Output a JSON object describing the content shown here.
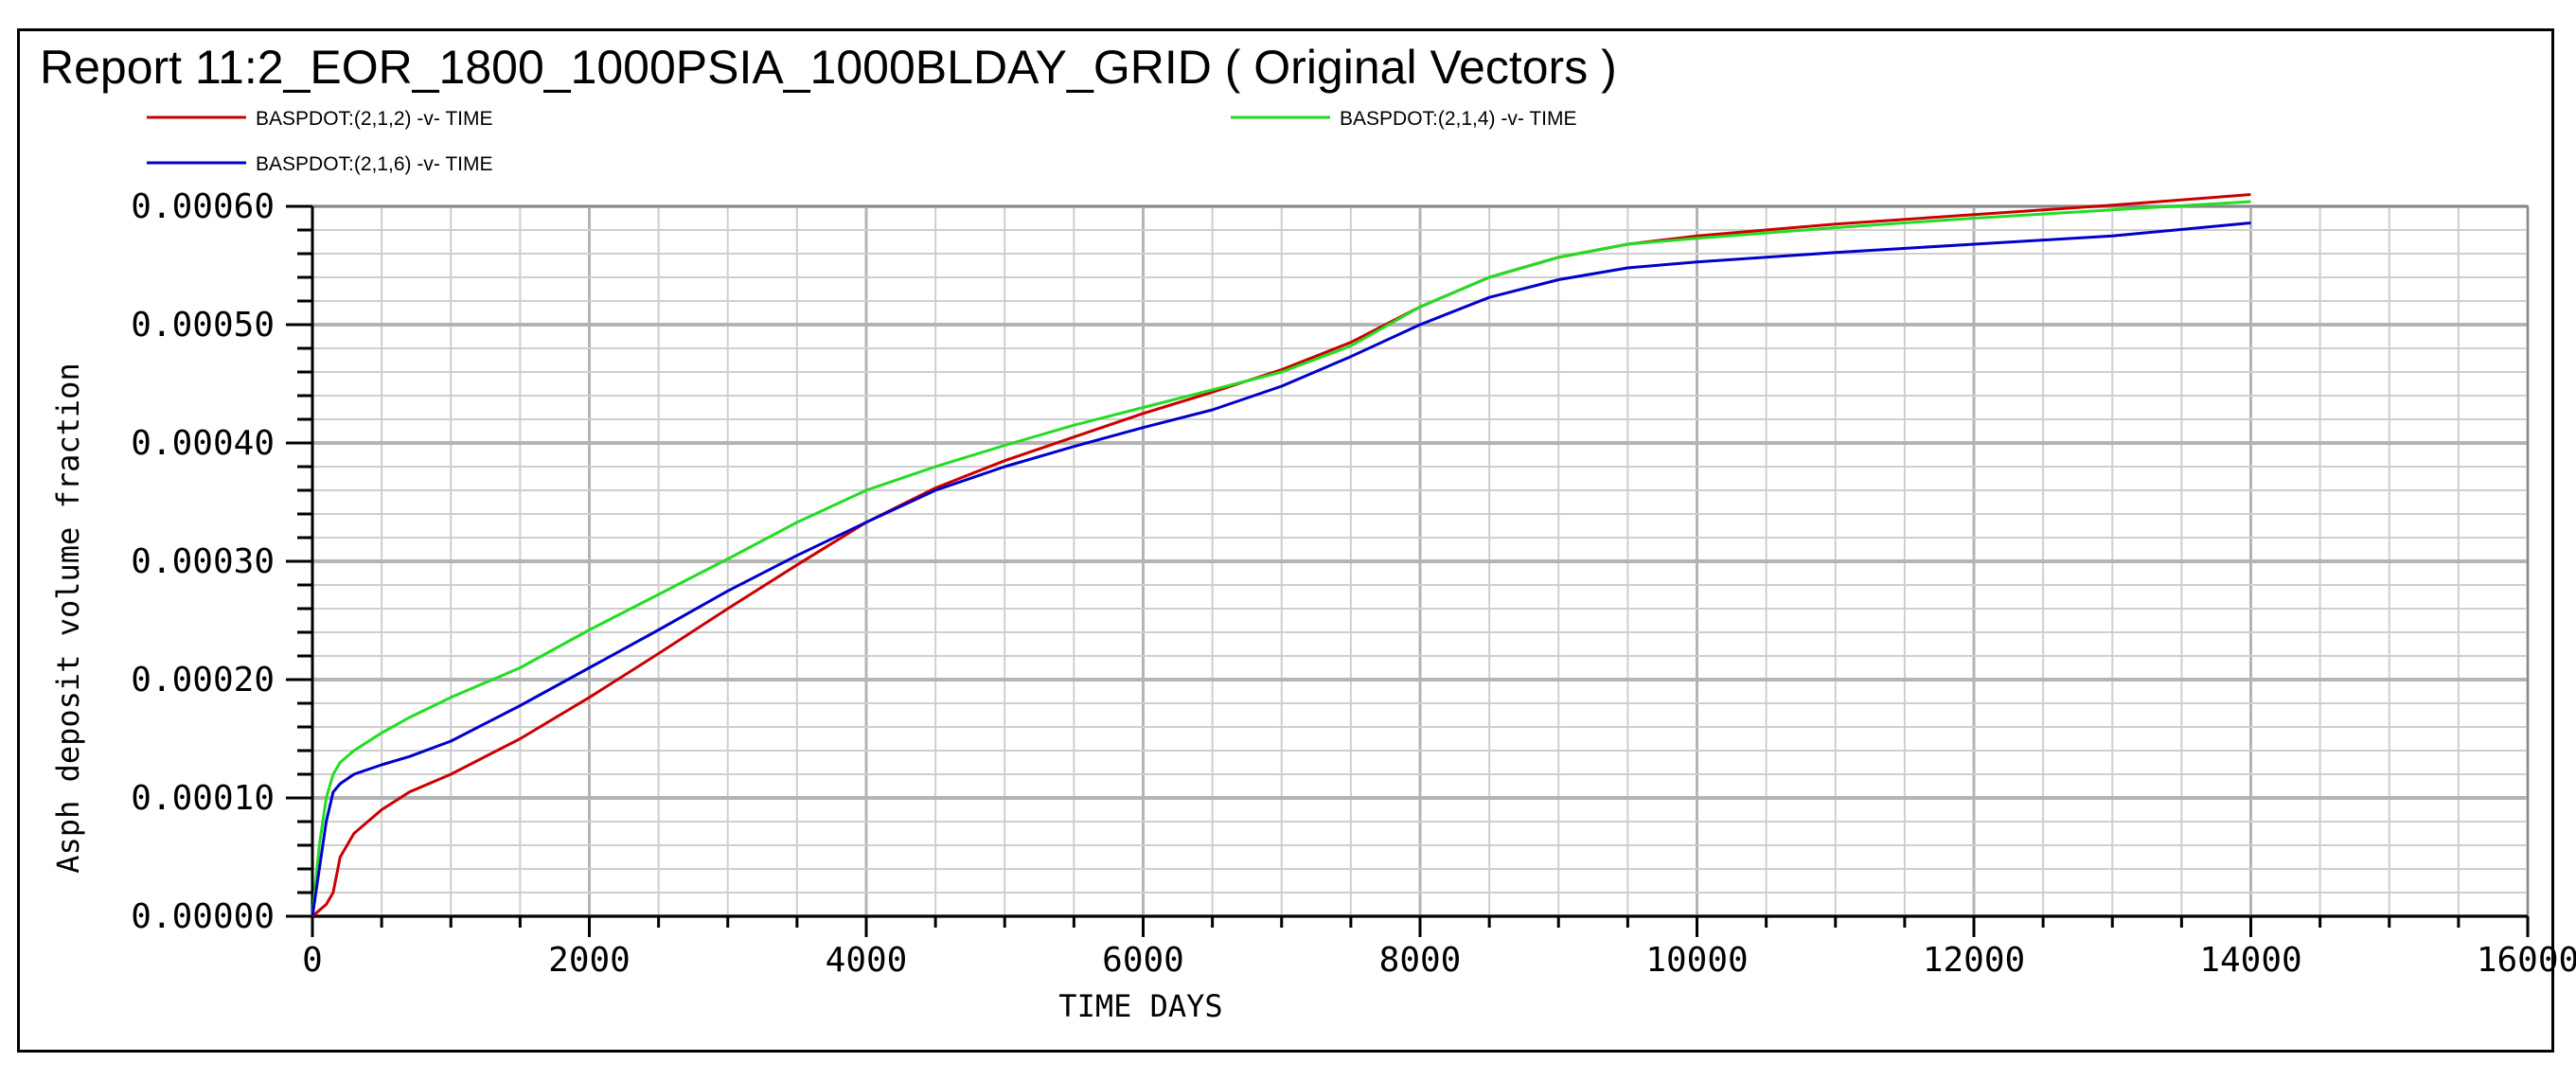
{
  "chart_data": {
    "type": "line",
    "title": "Report 11:2_EOR_1800_1000PSIA_1000BLDAY_GRID ( Original Vectors )",
    "xlabel": "TIME   DAYS",
    "ylabel": "Asph deposit volume fraction",
    "xlim": [
      0,
      16000
    ],
    "ylim": [
      0,
      0.0006
    ],
    "xticks": [
      0,
      2000,
      4000,
      6000,
      8000,
      10000,
      12000,
      14000,
      16000
    ],
    "xtick_labels": [
      "0",
      "2000",
      "4000",
      "6000",
      "8000",
      "10000",
      "12000",
      "14000",
      "16000"
    ],
    "yticks": [
      0,
      0.0001,
      0.0002,
      0.0003,
      0.0004,
      0.0005,
      0.0006
    ],
    "ytick_labels": [
      "0.00000",
      "0.00010",
      "0.00020",
      "0.00030",
      "0.00040",
      "0.00050",
      "0.00060"
    ],
    "grid": true,
    "legend_position": "top",
    "series": [
      {
        "name": "BASPDOT:(2,1,2) -v- TIME",
        "color": "#cc0000",
        "x": [
          0,
          100,
          150,
          200,
          300,
          400,
          500,
          700,
          1000,
          1500,
          2000,
          2500,
          3000,
          3500,
          4000,
          4500,
          5000,
          5500,
          6000,
          6500,
          7000,
          7500,
          8000,
          8500,
          9000,
          9500,
          10000,
          11000,
          12000,
          13000,
          14000
        ],
        "y": [
          0.0,
          1e-05,
          2e-05,
          5e-05,
          7e-05,
          8e-05,
          9e-05,
          0.000105,
          0.00012,
          0.00015,
          0.000185,
          0.000222,
          0.00026,
          0.000297,
          0.000333,
          0.000362,
          0.000385,
          0.000405,
          0.000425,
          0.000443,
          0.000462,
          0.000485,
          0.000515,
          0.00054,
          0.000557,
          0.000568,
          0.000575,
          0.000585,
          0.000593,
          0.000601,
          0.00061
        ]
      },
      {
        "name": "BASPDOT:(2,1,4) -v- TIME",
        "color": "#22dd22",
        "x": [
          0,
          50,
          100,
          150,
          200,
          300,
          500,
          700,
          1000,
          1500,
          2000,
          2500,
          3000,
          3500,
          4000,
          4500,
          5000,
          5500,
          6000,
          6500,
          7000,
          7500,
          8000,
          8500,
          9000,
          9500,
          10000,
          11000,
          12000,
          13000,
          14000
        ],
        "y": [
          0.0,
          6e-05,
          0.0001,
          0.00012,
          0.00013,
          0.00014,
          0.000155,
          0.000168,
          0.000185,
          0.00021,
          0.000242,
          0.000272,
          0.000302,
          0.000333,
          0.00036,
          0.00038,
          0.000398,
          0.000415,
          0.00043,
          0.000445,
          0.00046,
          0.000482,
          0.000515,
          0.00054,
          0.000557,
          0.000568,
          0.000573,
          0.000582,
          0.00059,
          0.000597,
          0.000604
        ]
      },
      {
        "name": "BASPDOT:(2,1,6) -v- TIME",
        "color": "#0000cc",
        "x": [
          0,
          50,
          100,
          150,
          200,
          300,
          500,
          700,
          1000,
          1500,
          2000,
          2500,
          3000,
          3500,
          4000,
          4500,
          5000,
          5500,
          6000,
          6500,
          7000,
          7500,
          8000,
          8500,
          9000,
          9500,
          10000,
          11000,
          12000,
          13000,
          14000
        ],
        "y": [
          0.0,
          4e-05,
          8e-05,
          0.000105,
          0.000112,
          0.00012,
          0.000128,
          0.000135,
          0.000148,
          0.000178,
          0.00021,
          0.000242,
          0.000275,
          0.000305,
          0.000333,
          0.00036,
          0.00038,
          0.000397,
          0.000413,
          0.000428,
          0.000448,
          0.000473,
          0.0005,
          0.000523,
          0.000538,
          0.000548,
          0.000553,
          0.000561,
          0.000568,
          0.000575,
          0.000586
        ]
      }
    ]
  }
}
